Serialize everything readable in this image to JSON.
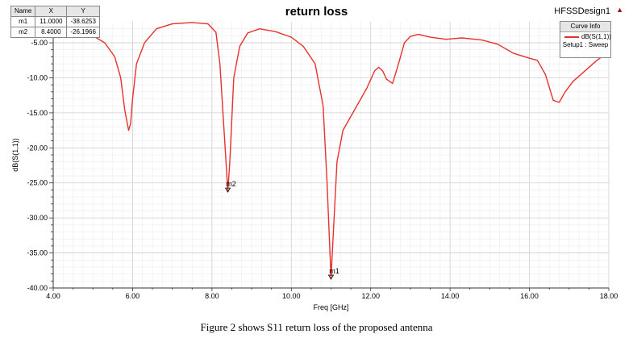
{
  "caption": "Figure 2 shows S11 return loss of the proposed antenna",
  "design_name": "HFSSDesign1",
  "curve_info": {
    "header": "Curve Info",
    "entry": "dB(S(1,1))",
    "setup": "Setup1 : Sweep",
    "line_color": "#e8312d"
  },
  "marker_table": {
    "headers": [
      "Name",
      "X",
      "Y"
    ],
    "rows": [
      [
        "m1",
        "11.0000",
        "-38.6253"
      ],
      [
        "m2",
        "8.4000",
        "-26.1966"
      ]
    ]
  },
  "chart_data": {
    "type": "line",
    "title": "return loss",
    "xlabel": "Freq [GHz]",
    "ylabel": "dB(S(1,1))",
    "xlim": [
      4.0,
      18.0
    ],
    "ylim": [
      -40.0,
      -2.0
    ],
    "x_ticks": [
      "4.00",
      "6.00",
      "8.00",
      "10.00",
      "12.00",
      "14.00",
      "16.00",
      "18.00"
    ],
    "y_ticks": [
      "-5.00",
      "-10.00",
      "-15.00",
      "-20.00",
      "-25.00",
      "-30.00",
      "-35.00",
      "-40.00"
    ],
    "grid": true,
    "legend_placement": "top-right",
    "series": [
      {
        "name": "dB(S(1,1))",
        "color": "#e8312d",
        "x": [
          4.0,
          4.5,
          5.0,
          5.3,
          5.55,
          5.7,
          5.8,
          5.9,
          5.95,
          6.0,
          6.1,
          6.3,
          6.6,
          7.0,
          7.5,
          7.9,
          8.1,
          8.2,
          8.3,
          8.4,
          8.45,
          8.55,
          8.7,
          8.9,
          9.2,
          9.6,
          10.0,
          10.3,
          10.6,
          10.8,
          10.9,
          11.0,
          11.05,
          11.15,
          11.3,
          11.6,
          11.9,
          12.1,
          12.2,
          12.3,
          12.4,
          12.55,
          12.7,
          12.85,
          13.0,
          13.2,
          13.5,
          13.9,
          14.3,
          14.8,
          15.2,
          15.6,
          16.0,
          16.2,
          16.4,
          16.6,
          16.75,
          16.9,
          17.1,
          17.4,
          17.7,
          18.0
        ],
        "y": [
          -2.1,
          -3.0,
          -4.0,
          -5.0,
          -7.0,
          -10.0,
          -14.5,
          -17.5,
          -16.5,
          -13.0,
          -8.0,
          -5.0,
          -3.0,
          -2.3,
          -2.1,
          -2.3,
          -3.5,
          -8.0,
          -17.0,
          -26.2,
          -22.0,
          -10.0,
          -5.5,
          -3.6,
          -3.0,
          -3.4,
          -4.2,
          -5.5,
          -8.0,
          -14.0,
          -25.0,
          -38.6,
          -33.0,
          -22.0,
          -17.5,
          -14.5,
          -11.5,
          -9.0,
          -8.5,
          -9.0,
          -10.2,
          -10.8,
          -8.0,
          -5.0,
          -4.1,
          -3.8,
          -4.2,
          -4.5,
          -4.3,
          -4.6,
          -5.2,
          -6.5,
          -7.2,
          -7.5,
          -9.5,
          -13.2,
          -13.5,
          -12.0,
          -10.5,
          -9.0,
          -7.5,
          -6.3
        ]
      }
    ],
    "markers": [
      {
        "label": "m1",
        "x": 11.0,
        "y": -38.6253
      },
      {
        "label": "m2",
        "x": 8.4,
        "y": -26.1966
      }
    ]
  }
}
